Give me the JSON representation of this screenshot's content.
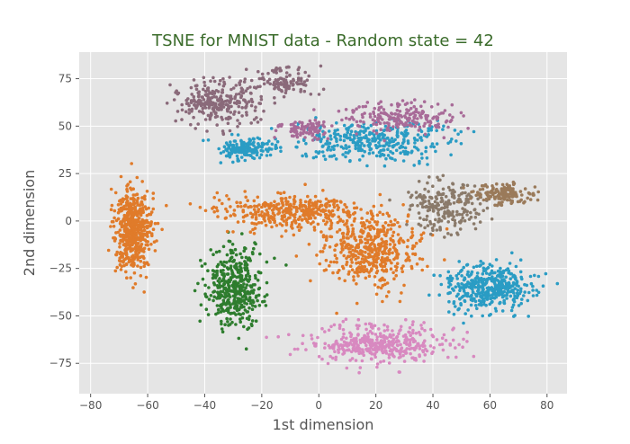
{
  "chart_data": {
    "type": "scatter",
    "title": "TSNE for MNIST data - Random state = 42",
    "xlabel": "1st dimension",
    "ylabel": "2nd dimension",
    "xlim": [
      -84,
      87
    ],
    "ylim": [
      -91,
      89
    ],
    "xticks": [
      -80,
      -60,
      -40,
      -20,
      0,
      20,
      40,
      60,
      80
    ],
    "yticks": [
      -75,
      -50,
      -25,
      0,
      25,
      50,
      75
    ],
    "grid": true,
    "legend": "none",
    "colors": {
      "background": "#e5e5e5",
      "grid": "#ffffff",
      "title": "#3a6b2a",
      "label": "#555555",
      "tick": "#555555"
    },
    "clusters": [
      {
        "color": "#e07b2a",
        "center": [
          -65,
          -5
        ],
        "spread": [
          6,
          22
        ],
        "count": 520
      },
      {
        "color": "#2e7d2e",
        "center": [
          -30,
          -35
        ],
        "spread": [
          9,
          18
        ],
        "count": 420
      },
      {
        "color": "#e07b2a",
        "center": [
          -10,
          5
        ],
        "spread": [
          22,
          8
        ],
        "count": 360
      },
      {
        "color": "#e07b2a",
        "center": [
          18,
          -15
        ],
        "spread": [
          15,
          18
        ],
        "count": 480
      },
      {
        "color": "#d889c0",
        "center": [
          20,
          -65
        ],
        "spread": [
          22,
          9
        ],
        "count": 420
      },
      {
        "color": "#2a9cc4",
        "center": [
          60,
          -35
        ],
        "spread": [
          14,
          11
        ],
        "count": 420
      },
      {
        "color": "#8a6a7a",
        "center": [
          -35,
          62
        ],
        "spread": [
          12,
          12
        ],
        "count": 280
      },
      {
        "color": "#8a6a7a",
        "center": [
          -12,
          74
        ],
        "spread": [
          8,
          7
        ],
        "count": 110
      },
      {
        "color": "#2a9cc4",
        "center": [
          -25,
          38
        ],
        "spread": [
          9,
          5
        ],
        "count": 160
      },
      {
        "color": "#2a9cc4",
        "center": [
          18,
          42
        ],
        "spread": [
          24,
          9
        ],
        "count": 340
      },
      {
        "color": "#a86b98",
        "center": [
          30,
          55
        ],
        "spread": [
          18,
          7
        ],
        "count": 200
      },
      {
        "color": "#a86b98",
        "center": [
          -5,
          48
        ],
        "spread": [
          8,
          5
        ],
        "count": 90
      },
      {
        "color": "#8a7a6a",
        "center": [
          45,
          8
        ],
        "spread": [
          12,
          12
        ],
        "count": 230
      },
      {
        "color": "#9a7a5a",
        "center": [
          65,
          14
        ],
        "spread": [
          9,
          5
        ],
        "count": 140
      }
    ]
  }
}
